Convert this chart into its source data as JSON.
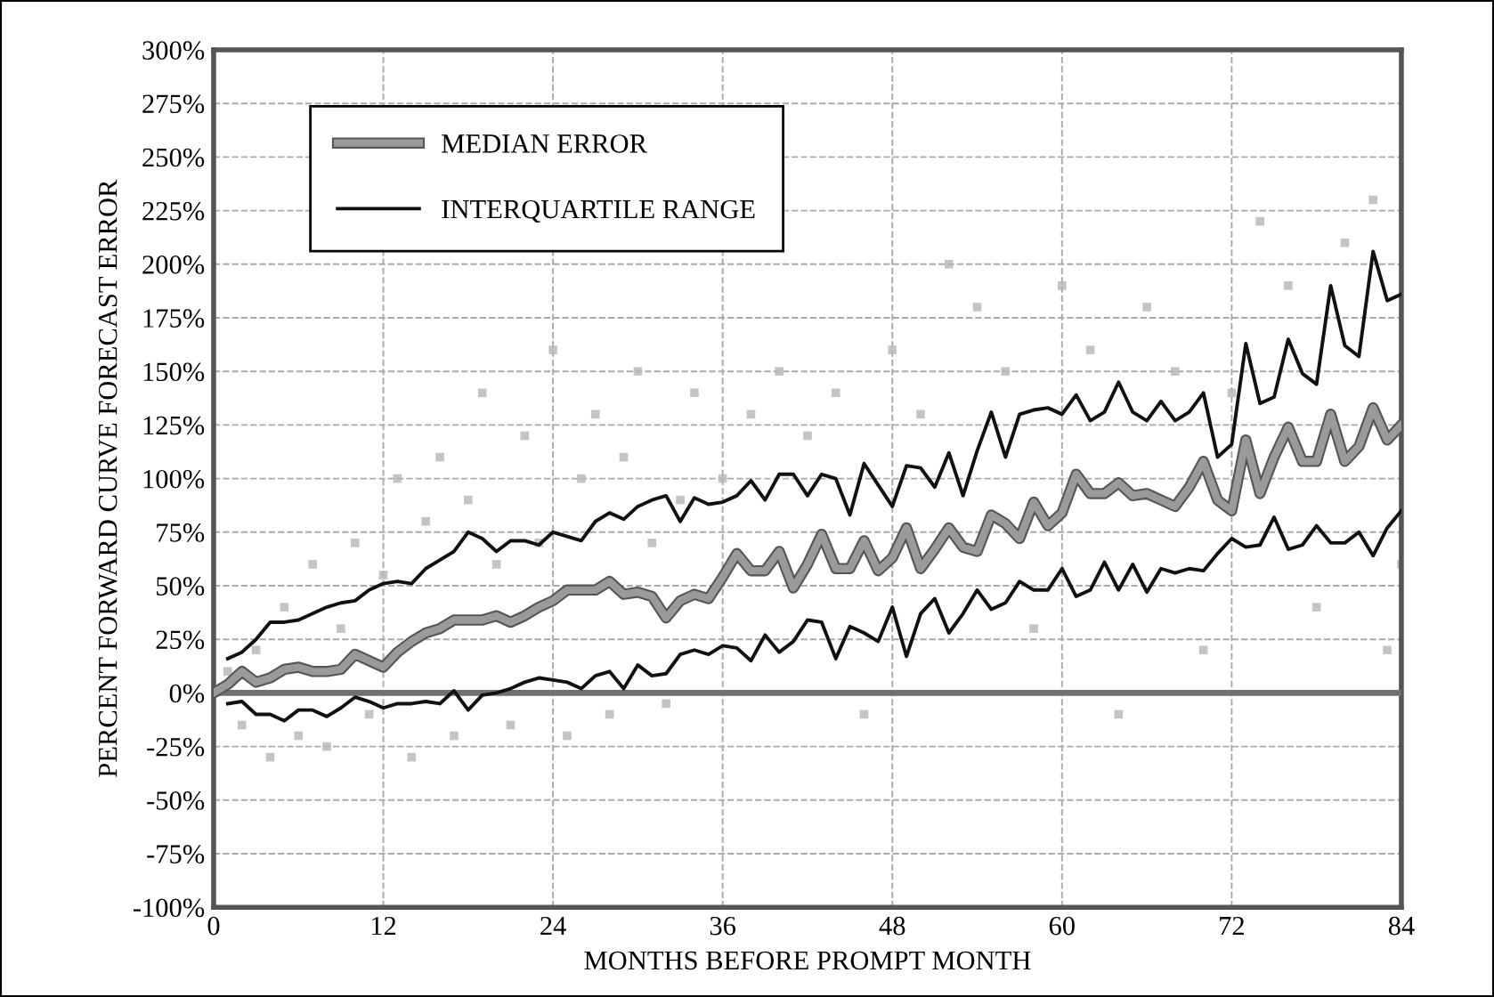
{
  "chart_data": {
    "type": "line",
    "xlabel": "MONTHS BEFORE PROMPT MONTH",
    "ylabel": "PERCENT FORWARD CURVE FORECAST ERROR",
    "x": [
      0,
      1,
      2,
      3,
      4,
      5,
      6,
      7,
      8,
      9,
      10,
      11,
      12,
      13,
      14,
      15,
      16,
      17,
      18,
      19,
      20,
      21,
      22,
      23,
      24,
      25,
      26,
      27,
      28,
      29,
      30,
      31,
      32,
      33,
      34,
      35,
      36,
      37,
      38,
      39,
      40,
      41,
      42,
      43,
      44,
      45,
      46,
      47,
      48,
      49,
      50,
      51,
      52,
      53,
      54,
      55,
      56,
      57,
      58,
      59,
      60,
      61,
      62,
      63,
      64,
      65,
      66,
      67,
      68,
      69,
      70,
      71,
      72,
      73,
      74,
      75,
      76,
      77,
      78,
      79,
      80,
      81,
      82,
      83,
      84
    ],
    "series": [
      {
        "type": "scatter",
        "color": "#b5b5b5",
        "marker": "square",
        "x": [
          1,
          2,
          3,
          4,
          5,
          6,
          7,
          8,
          9,
          10,
          11,
          12,
          13,
          14,
          15,
          16,
          17,
          18,
          19,
          20,
          21,
          22,
          23,
          24,
          25,
          26,
          27,
          28,
          29,
          30,
          31,
          32,
          33,
          34,
          36,
          38,
          40,
          42,
          44,
          46,
          48,
          50,
          52,
          54,
          56,
          58,
          60,
          62,
          64,
          66,
          68,
          70,
          72,
          74,
          76,
          78,
          80,
          82,
          83,
          84
        ],
        "values": [
          10,
          -15,
          20,
          -30,
          40,
          -20,
          60,
          -25,
          30,
          70,
          -10,
          55,
          100,
          -30,
          80,
          110,
          -20,
          90,
          140,
          60,
          -15,
          120,
          70,
          160,
          -20,
          100,
          130,
          -10,
          110,
          150,
          70,
          -5,
          90,
          140,
          100,
          130,
          150,
          120,
          140,
          -10,
          160,
          130,
          200,
          180,
          150,
          30,
          190,
          160,
          -10,
          180,
          150,
          20,
          140,
          220,
          190,
          40,
          210,
          230,
          20,
          60
        ]
      },
      {
        "name": "MEDIAN ERROR",
        "color": "#9a9a9a",
        "values": [
          0,
          4,
          10,
          5,
          7,
          11,
          12,
          10,
          10,
          11,
          18,
          15,
          12,
          19,
          24,
          28,
          30,
          34,
          34,
          34,
          36,
          33,
          36,
          40,
          43,
          48,
          48,
          48,
          52,
          46,
          47,
          45,
          35,
          43,
          46,
          44,
          54,
          65,
          57,
          57,
          66,
          49,
          60,
          74,
          58,
          58,
          71,
          57,
          63,
          77,
          58,
          67,
          77,
          68,
          66,
          83,
          79,
          72,
          89,
          78,
          84,
          102,
          93,
          93,
          98,
          92,
          93,
          90,
          87,
          96,
          108,
          90,
          85,
          118,
          93,
          110,
          124,
          108,
          108,
          130,
          108,
          115,
          133,
          118,
          125
        ]
      },
      {
        "name": "INTERQUARTILE RANGE",
        "color": "#111111",
        "values": [
          null,
          16,
          19,
          25,
          33,
          33,
          34,
          37,
          40,
          42,
          43,
          48,
          51,
          52,
          51,
          58,
          62,
          66,
          75,
          72,
          66,
          71,
          71,
          69,
          75,
          73,
          71,
          80,
          84,
          81,
          87,
          90,
          92,
          80,
          91,
          88,
          89,
          92,
          99,
          90,
          102,
          102,
          92,
          102,
          100,
          83,
          107,
          97,
          87,
          106,
          105,
          96,
          112,
          92,
          113,
          131,
          110,
          130,
          132,
          133,
          130,
          139,
          127,
          131,
          145,
          131,
          127,
          136,
          127,
          131,
          140,
          110,
          116,
          163,
          135,
          138,
          165,
          149,
          144,
          190,
          162,
          157,
          206,
          183,
          186
        ]
      },
      {
        "color": "#111111",
        "values": [
          null,
          -5,
          -4,
          -10,
          -10,
          -13,
          -8,
          -8,
          -11,
          -7,
          -2,
          -4,
          -7,
          -5,
          -5,
          -4,
          -5,
          1,
          -8,
          -1,
          0,
          2,
          5,
          7,
          6,
          5,
          2,
          8,
          10,
          2,
          13,
          8,
          9,
          18,
          20,
          18,
          22,
          21,
          15,
          27,
          19,
          24,
          34,
          33,
          16,
          31,
          28,
          24,
          40,
          17,
          37,
          44,
          28,
          37,
          48,
          39,
          42,
          52,
          48,
          48,
          58,
          45,
          48,
          61,
          48,
          60,
          47,
          58,
          56,
          58,
          57,
          65,
          72,
          68,
          69,
          82,
          67,
          69,
          78,
          70,
          70,
          75,
          64,
          77,
          85
        ]
      }
    ],
    "xlim": [
      0,
      84
    ],
    "xticks": [
      0,
      12,
      24,
      36,
      48,
      60,
      72,
      84
    ],
    "ylim": [
      -100,
      300
    ],
    "yticks": [
      {
        "value": -100,
        "label": "-100%"
      },
      {
        "value": -75,
        "label": "-75%"
      },
      {
        "value": -50,
        "label": "-50%"
      },
      {
        "value": -25,
        "label": "-25%"
      },
      {
        "value": 0,
        "label": "0%"
      },
      {
        "value": 25,
        "label": "25%"
      },
      {
        "value": 50,
        "label": "50%"
      },
      {
        "value": 75,
        "label": "75%"
      },
      {
        "value": 100,
        "label": "100%"
      },
      {
        "value": 125,
        "label": "125%"
      },
      {
        "value": 150,
        "label": "150%"
      },
      {
        "value": 175,
        "label": "175%"
      },
      {
        "value": 200,
        "label": "200%"
      },
      {
        "value": 225,
        "label": "225%"
      },
      {
        "value": 250,
        "label": "250%"
      },
      {
        "value": 275,
        "label": "275%"
      },
      {
        "value": 300,
        "label": "300%"
      }
    ],
    "ref_lines": [
      {
        "axis": "y",
        "value": 0,
        "color": "#707070"
      }
    ],
    "grid": true,
    "legend": "top left",
    "line_style": "solid"
  }
}
